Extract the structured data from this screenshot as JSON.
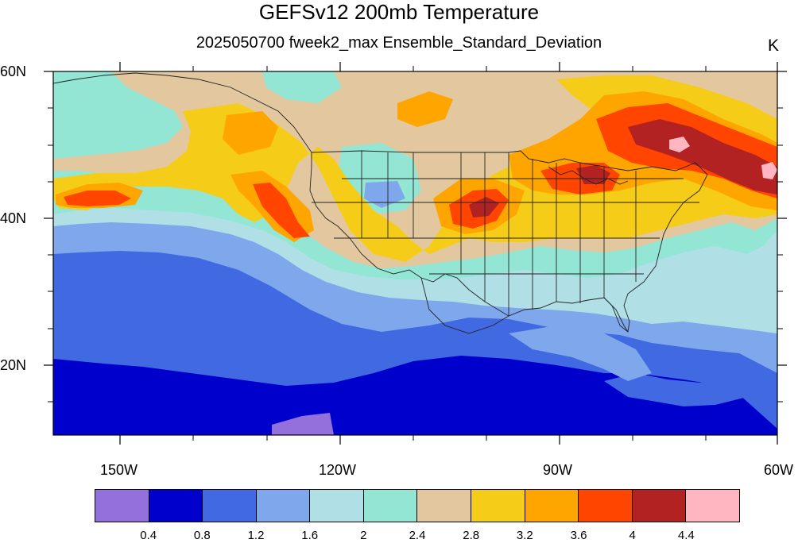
{
  "title": "GEFSv12 200mb Temperature",
  "subtitle": "2025050700 fweek2_max Ensemble_Standard_Deviation",
  "units": "K",
  "lat_labels": [
    "60N",
    "40N",
    "20N"
  ],
  "lon_labels": [
    "150W",
    "120W",
    "90W",
    "60W"
  ],
  "colorbar": {
    "levels": [
      "0.4",
      "0.8",
      "1.2",
      "1.6",
      "2",
      "2.4",
      "2.8",
      "3.2",
      "3.6",
      "4",
      "4.4"
    ],
    "colors": [
      "#9370db",
      "#0000cd",
      "#4169e1",
      "#7ea8eb",
      "#b0e0e6",
      "#93e6d4",
      "#e3c89f",
      "#f5cc18",
      "#ffa500",
      "#ff4500",
      "#b22222",
      "#ffb6c1"
    ]
  },
  "map": {
    "region": "North Pacific / United States",
    "lat_range": [
      10,
      60
    ],
    "lon_range": [
      -160,
      -60
    ],
    "palette": {
      "purple": "#9370db",
      "dark_blue": "#0000cd",
      "royal_blue": "#4169e1",
      "light_blue": "#7ea8eb",
      "pale_blue": "#b0e0e6",
      "aqua": "#93e6d4",
      "tan": "#e3c89f",
      "yellow": "#f5cc18",
      "orange": "#ffa500",
      "red_orange": "#ff4500",
      "dark_red": "#b22222",
      "pink": "#ffb6c1"
    }
  }
}
